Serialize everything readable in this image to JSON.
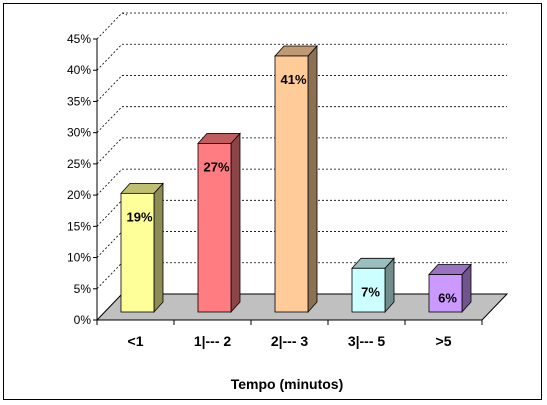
{
  "chart_data": {
    "type": "bar",
    "title": "",
    "xlabel": "Tempo (minutos)",
    "ylabel": "",
    "categories": [
      "<1",
      "1|--- 2",
      "2|--- 3",
      "3|--- 5",
      ">5"
    ],
    "values": [
      19,
      27,
      41,
      7,
      6
    ],
    "data_labels": [
      "19%",
      "27%",
      "41%",
      "7%",
      "6%"
    ],
    "ylim": [
      0,
      45
    ],
    "yticks": [
      0,
      5,
      10,
      15,
      20,
      25,
      30,
      35,
      40,
      45
    ],
    "ytick_labels": [
      "0%",
      "5%",
      "10%",
      "15%",
      "20%",
      "25%",
      "30%",
      "35%",
      "40%",
      "45%"
    ],
    "grid": true,
    "style": "3d-column",
    "colors": [
      "#FFFF99",
      "#FF7C80",
      "#FFCC99",
      "#CCFFFF",
      "#CC99FF"
    ],
    "floor_color": "#C0C0C0"
  }
}
